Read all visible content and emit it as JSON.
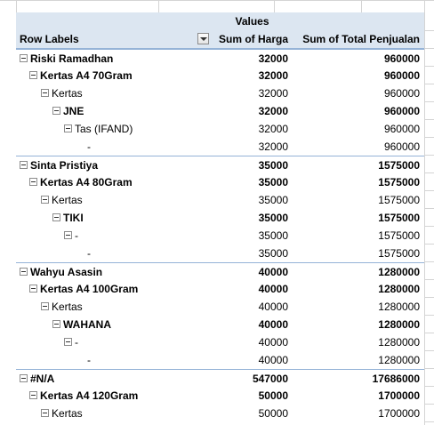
{
  "pivot": {
    "values_caption": "Values",
    "row_labels_header": "Row Labels",
    "col_harga_header": "Sum of Harga",
    "col_total_header": "Sum of Total Penjualan",
    "rows": [
      {
        "label": "Riski Ramadhan",
        "harga": "32000",
        "total": "960000",
        "level": 0,
        "toggle": true,
        "bold": true,
        "top_border": true
      },
      {
        "label": "Kertas A4 70Gram",
        "harga": "32000",
        "total": "960000",
        "level": 1,
        "toggle": true,
        "bold": true,
        "top_border": false
      },
      {
        "label": "Kertas",
        "harga": "32000",
        "total": "960000",
        "level": 2,
        "toggle": true,
        "bold": false,
        "top_border": false
      },
      {
        "label": "JNE",
        "harga": "32000",
        "total": "960000",
        "level": 3,
        "toggle": true,
        "bold": true,
        "top_border": false
      },
      {
        "label": "Tas (IFAND)",
        "harga": "32000",
        "total": "960000",
        "level": 4,
        "toggle": true,
        "bold": false,
        "top_border": false
      },
      {
        "label": "-",
        "harga": "32000",
        "total": "960000",
        "level": 5,
        "toggle": false,
        "bold": false,
        "top_border": false
      },
      {
        "label": "Sinta Pristiya",
        "harga": "35000",
        "total": "1575000",
        "level": 0,
        "toggle": true,
        "bold": true,
        "top_border": true
      },
      {
        "label": "Kertas A4 80Gram",
        "harga": "35000",
        "total": "1575000",
        "level": 1,
        "toggle": true,
        "bold": true,
        "top_border": false
      },
      {
        "label": "Kertas",
        "harga": "35000",
        "total": "1575000",
        "level": 2,
        "toggle": true,
        "bold": false,
        "top_border": false
      },
      {
        "label": "TIKI",
        "harga": "35000",
        "total": "1575000",
        "level": 3,
        "toggle": true,
        "bold": true,
        "top_border": false
      },
      {
        "label": "-",
        "harga": "35000",
        "total": "1575000",
        "level": 4,
        "toggle": true,
        "bold": false,
        "top_border": false
      },
      {
        "label": "-",
        "harga": "35000",
        "total": "1575000",
        "level": 5,
        "toggle": false,
        "bold": false,
        "top_border": false
      },
      {
        "label": "Wahyu Asasin",
        "harga": "40000",
        "total": "1280000",
        "level": 0,
        "toggle": true,
        "bold": true,
        "top_border": true
      },
      {
        "label": "Kertas A4 100Gram",
        "harga": "40000",
        "total": "1280000",
        "level": 1,
        "toggle": true,
        "bold": true,
        "top_border": false
      },
      {
        "label": "Kertas",
        "harga": "40000",
        "total": "1280000",
        "level": 2,
        "toggle": true,
        "bold": false,
        "top_border": false
      },
      {
        "label": "WAHANA",
        "harga": "40000",
        "total": "1280000",
        "level": 3,
        "toggle": true,
        "bold": true,
        "top_border": false
      },
      {
        "label": "-",
        "harga": "40000",
        "total": "1280000",
        "level": 4,
        "toggle": true,
        "bold": false,
        "top_border": false
      },
      {
        "label": "-",
        "harga": "40000",
        "total": "1280000",
        "level": 5,
        "toggle": false,
        "bold": false,
        "top_border": false
      },
      {
        "label": "#N/A",
        "harga": "547000",
        "total": "17686000",
        "level": 0,
        "toggle": true,
        "bold": true,
        "top_border": true
      },
      {
        "label": "Kertas A4 120Gram",
        "harga": "50000",
        "total": "1700000",
        "level": 1,
        "toggle": true,
        "bold": true,
        "top_border": false
      },
      {
        "label": "Kertas",
        "harga": "50000",
        "total": "1700000",
        "level": 2,
        "toggle": true,
        "bold": false,
        "top_border": false
      }
    ]
  },
  "icons": {
    "toggle": "collapse-minus-icon",
    "filter": "dropdown-filter-icon"
  },
  "colors": {
    "header_band": "#dce6f1",
    "border": "#95b3d7"
  }
}
